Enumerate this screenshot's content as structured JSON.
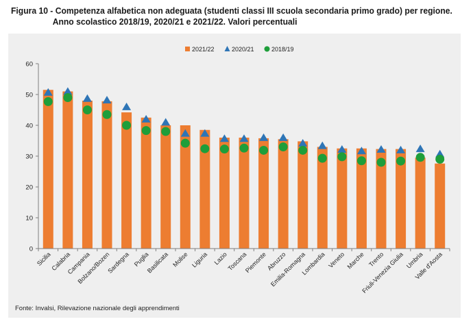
{
  "title": {
    "line1": "Figura 10 - Competenza alfabetica non adeguata (studenti classi III scuola secondaria primo grado) per regione.",
    "line2": "Anno scolastico 2018/19, 2020/21 e 2021/22. Valori percentuali"
  },
  "source": "Fonte: Invalsi, Rilevazione nazionale degli apprendimenti",
  "colors": {
    "bar": "#ED7D31",
    "triangle": "#2E75B6",
    "circle": "#1E9E3A",
    "panel": "#efefef"
  },
  "chart_data": {
    "type": "bar",
    "title": "Competenza alfabetica non adeguata (studenti classi III scuola secondaria primo grado) per regione",
    "xlabel": "",
    "ylabel": "",
    "ylim": [
      0,
      60
    ],
    "yticks": [
      "0",
      "10",
      "20",
      "30",
      "40",
      "50",
      "60"
    ],
    "legend_position": "top",
    "categories": [
      "Sicilia",
      "Calabria",
      "Campania",
      "Bolzano/Bozen",
      "Sardegna",
      "Puglia",
      "Basilicata",
      "Molise",
      "Liguria",
      "Lazio",
      "Toscana",
      "Piemonte",
      "Abruzzo",
      "Emilia-Romagna",
      "Lombardia",
      "Veneto",
      "Marche",
      "Trento",
      "Friuli-Venezia Giulia",
      "Umbria",
      "Valle d'Aosta"
    ],
    "series": [
      {
        "name": "2021/22",
        "kind": "bar",
        "values": [
          51.5,
          51.0,
          48.0,
          47.8,
          44.2,
          42.5,
          40.0,
          40.0,
          38.5,
          36.0,
          36.0,
          35.8,
          35.5,
          34.8,
          33.0,
          32.5,
          32.5,
          32.3,
          32.3,
          29.5,
          27.6
        ]
      },
      {
        "name": "2020/21",
        "kind": "triangle",
        "values": [
          50.5,
          50.8,
          48.5,
          48.0,
          45.8,
          41.8,
          40.8,
          37.2,
          37.2,
          35.5,
          35.5,
          35.8,
          35.8,
          34.0,
          33.2,
          32.0,
          31.5,
          32.0,
          31.8,
          32.2,
          30.5
        ]
      },
      {
        "name": "2018/19",
        "kind": "circle",
        "values": [
          47.7,
          49.0,
          45.0,
          43.5,
          40.0,
          38.3,
          38.0,
          34.2,
          32.4,
          32.3,
          32.6,
          31.9,
          33.0,
          31.9,
          29.3,
          29.8,
          28.5,
          28.0,
          28.4,
          29.6,
          29.0
        ]
      }
    ]
  }
}
